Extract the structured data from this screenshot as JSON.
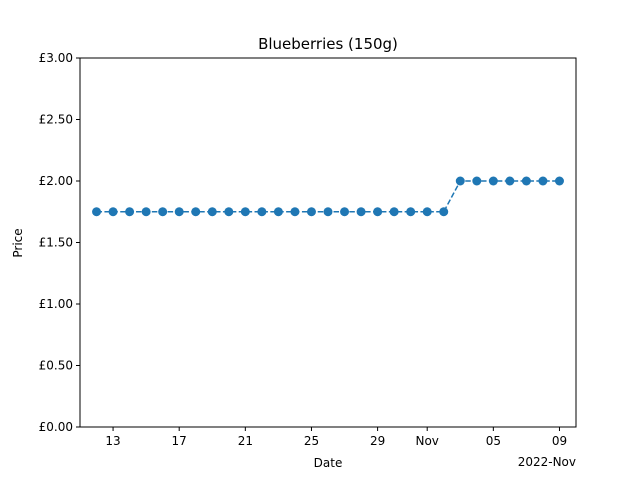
{
  "chart_data": {
    "type": "line",
    "title": "Blueberries (150g)",
    "xlabel": "Date",
    "ylabel": "Price",
    "x_offset_label": "2022-Nov",
    "xlim": [
      "2022-10-11",
      "2022-11-10"
    ],
    "ylim": [
      0,
      3
    ],
    "x_ticks": [
      {
        "date": "2022-10-13",
        "label": "13"
      },
      {
        "date": "2022-10-17",
        "label": "17"
      },
      {
        "date": "2022-10-21",
        "label": "21"
      },
      {
        "date": "2022-10-25",
        "label": "25"
      },
      {
        "date": "2022-10-29",
        "label": "29"
      },
      {
        "date": "2022-11-01",
        "label": "Nov"
      },
      {
        "date": "2022-11-05",
        "label": "05"
      },
      {
        "date": "2022-11-09",
        "label": "09"
      }
    ],
    "y_ticks": [
      {
        "value": 0,
        "label": "£0.00"
      },
      {
        "value": 0.5,
        "label": "£0.50"
      },
      {
        "value": 1.0,
        "label": "£1.00"
      },
      {
        "value": 1.5,
        "label": "£1.50"
      },
      {
        "value": 2.0,
        "label": "£2.00"
      },
      {
        "value": 2.5,
        "label": "£2.50"
      },
      {
        "value": 3.0,
        "label": "£3.00"
      }
    ],
    "grid": false,
    "line_style": "dashed",
    "marker": "circle",
    "color": "#1f77b4",
    "series": [
      {
        "x": [
          "2022-10-12",
          "2022-10-13",
          "2022-10-14",
          "2022-10-15",
          "2022-10-16",
          "2022-10-17",
          "2022-10-18",
          "2022-10-19",
          "2022-10-20",
          "2022-10-21",
          "2022-10-22",
          "2022-10-23",
          "2022-10-24",
          "2022-10-25",
          "2022-10-26",
          "2022-10-27",
          "2022-10-28",
          "2022-10-29",
          "2022-10-30",
          "2022-10-31",
          "2022-11-01",
          "2022-11-02",
          "2022-11-03",
          "2022-11-04",
          "2022-11-05",
          "2022-11-06",
          "2022-11-07",
          "2022-11-08",
          "2022-11-09"
        ],
        "values": [
          1.75,
          1.75,
          1.75,
          1.75,
          1.75,
          1.75,
          1.75,
          1.75,
          1.75,
          1.75,
          1.75,
          1.75,
          1.75,
          1.75,
          1.75,
          1.75,
          1.75,
          1.75,
          1.75,
          1.75,
          1.75,
          1.75,
          2.0,
          2.0,
          2.0,
          2.0,
          2.0,
          2.0,
          2.0
        ]
      }
    ]
  }
}
